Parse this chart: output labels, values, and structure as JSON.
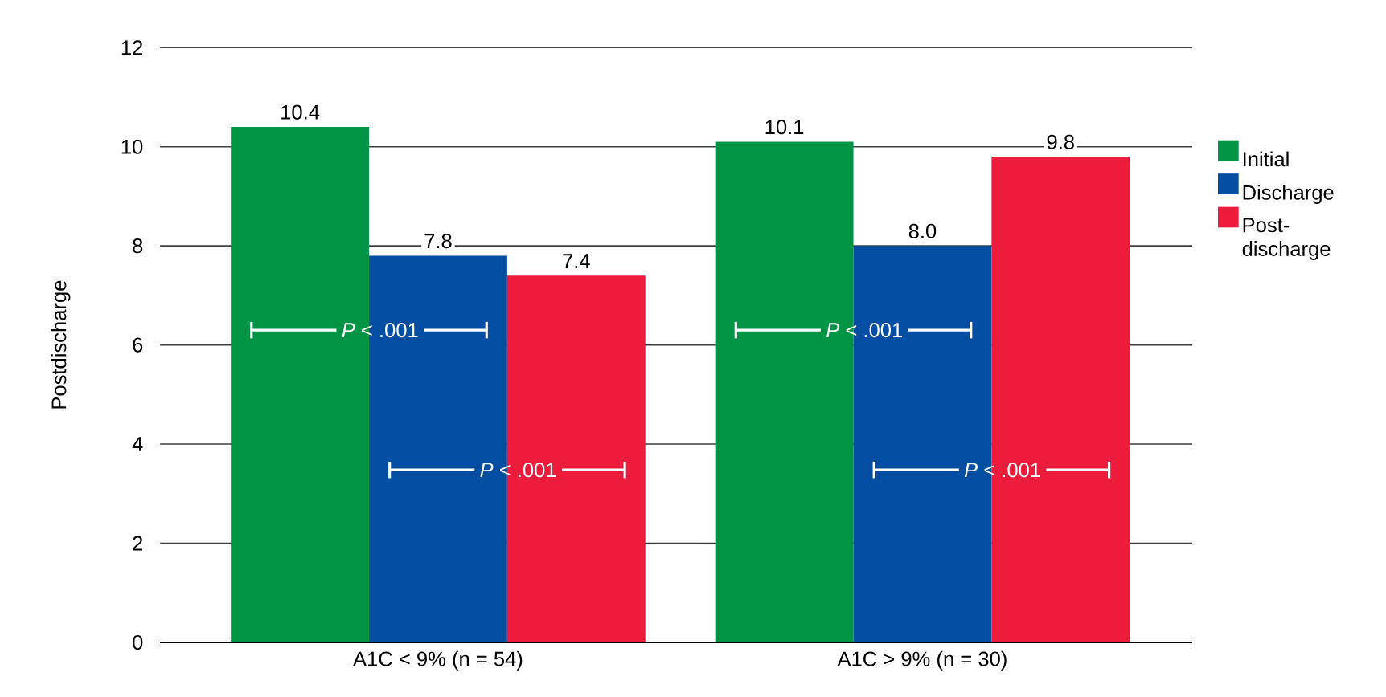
{
  "chart_data": {
    "type": "bar",
    "ylabel": "Postdischarge",
    "categories": [
      "A1C < 9% (n = 54)",
      "A1C > 9% (n = 30)"
    ],
    "series": [
      {
        "name": "Initial",
        "color": "#009444",
        "values": [
          10.4,
          10.1
        ],
        "value_labels": [
          "10.4",
          "10.1"
        ]
      },
      {
        "name": "Discharge",
        "color": "#034ea2",
        "values": [
          7.8,
          8.0
        ],
        "value_labels": [
          "7.8",
          "8.0"
        ]
      },
      {
        "name": "Post-discharge",
        "color": "#ed1c3c",
        "values": [
          7.4,
          9.8
        ],
        "value_labels": [
          "7.4",
          "9.8"
        ]
      }
    ],
    "ylim": [
      0,
      12
    ],
    "yticks": [
      0,
      2,
      4,
      6,
      8,
      10,
      12
    ],
    "grid": "y",
    "legend": "right",
    "annotations": [
      "*P* < .001",
      "*P* < .001",
      "*P* < .001",
      "*P* < .001"
    ]
  }
}
